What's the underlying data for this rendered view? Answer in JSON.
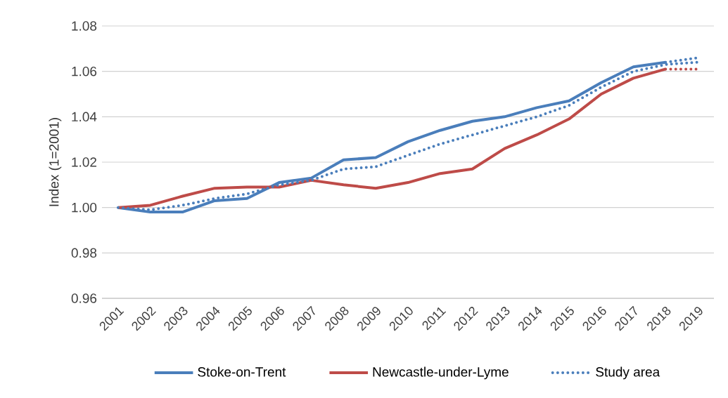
{
  "chart_data": {
    "type": "line",
    "ylabel": "Index (1=2001)",
    "categories": [
      "2001",
      "2002",
      "2003",
      "2004",
      "2005",
      "2006",
      "2007",
      "2008",
      "2009",
      "2010",
      "2011",
      "2012",
      "2013",
      "2014",
      "2015",
      "2016",
      "2017",
      "2018",
      "2019"
    ],
    "series": [
      {
        "name": "Stoke-on-Trent",
        "color": "#4a7ebb",
        "line_style": "solid",
        "values": [
          1.0,
          0.998,
          0.998,
          1.003,
          1.004,
          1.011,
          1.013,
          1.021,
          1.022,
          1.029,
          1.034,
          1.038,
          1.04,
          1.044,
          1.047,
          1.055,
          1.062,
          1.064,
          null
        ]
      },
      {
        "color": "#4a7ebb",
        "line_style": "dotted",
        "values": [
          null,
          null,
          null,
          null,
          null,
          null,
          null,
          null,
          null,
          null,
          null,
          null,
          null,
          null,
          null,
          null,
          null,
          1.064,
          1.066
        ]
      },
      {
        "name": "Newcastle-under-Lyme",
        "color": "#be4b48",
        "line_style": "solid",
        "values": [
          1.0,
          1.001,
          1.005,
          1.0085,
          1.009,
          1.009,
          1.012,
          1.01,
          1.0085,
          1.011,
          1.015,
          1.017,
          1.026,
          1.032,
          1.039,
          1.05,
          1.057,
          1.061,
          null
        ]
      },
      {
        "color": "#be4b48",
        "line_style": "dotted",
        "values": [
          null,
          null,
          null,
          null,
          null,
          null,
          null,
          null,
          null,
          null,
          null,
          null,
          null,
          null,
          null,
          null,
          null,
          1.061,
          1.061
        ]
      },
      {
        "name": "Study area",
        "color": "#4a7ebb",
        "line_style": "dotted",
        "values": [
          1.0,
          0.999,
          1.001,
          1.004,
          1.006,
          1.01,
          1.012,
          1.017,
          1.018,
          1.023,
          1.028,
          1.032,
          1.036,
          1.04,
          1.045,
          1.053,
          1.06,
          1.063,
          1.064
        ]
      }
    ],
    "ylim": [
      0.96,
      1.08
    ],
    "yticks": [
      {
        "value": 0.96,
        "label": "0.96"
      },
      {
        "value": 0.98,
        "label": "0.98"
      },
      {
        "value": 1.0,
        "label": "1.00"
      },
      {
        "value": 1.02,
        "label": "1.02"
      },
      {
        "value": 1.04,
        "label": "1.04"
      },
      {
        "value": 1.06,
        "label": "1.06"
      },
      {
        "value": 1.08,
        "label": "1.08"
      }
    ],
    "grid": "y",
    "legend": "bottom"
  }
}
